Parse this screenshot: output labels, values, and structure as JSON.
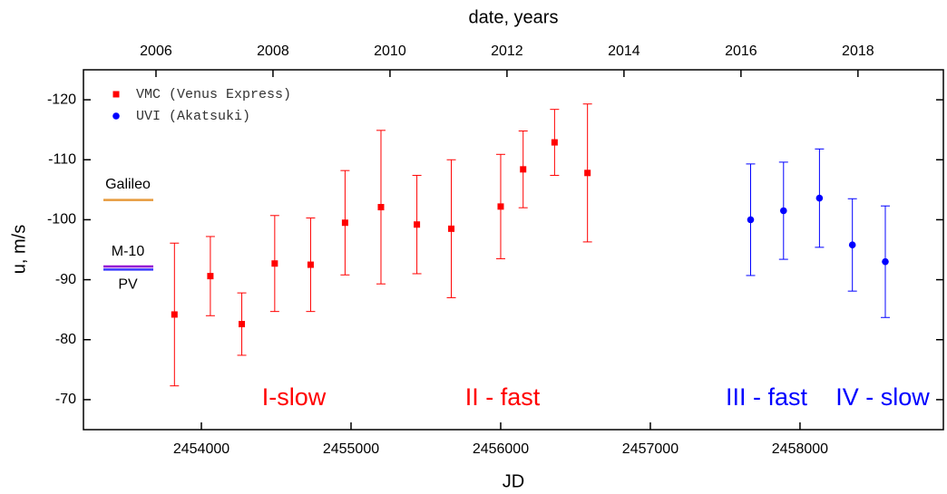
{
  "chart_data": {
    "type": "scatter",
    "xlabel": "JD",
    "ylabel": "u, m/s",
    "x2label": "date, years",
    "xlim": [
      2453212,
      2458958
    ],
    "xticks": [
      2454000,
      2455000,
      2456000,
      2457000,
      2458000
    ],
    "x2lim": [
      2004.76,
      2019.46
    ],
    "x2ticks": [
      2006,
      2008,
      2010,
      2012,
      2014,
      2016,
      2018
    ],
    "ylim": [
      -125,
      -65
    ],
    "yticks": [
      -120,
      -110,
      -100,
      -90,
      -80,
      -70
    ],
    "y_inverted": true,
    "legend": "upper left",
    "series": [
      {
        "name": "VMC (Venus Express)",
        "color": "#ff0000",
        "marker": "square",
        "x": [
          2453820,
          2454060,
          2454270,
          2454490,
          2454730,
          2454960,
          2455200,
          2455440,
          2455670,
          2456000,
          2456150,
          2456360,
          2456580
        ],
        "values": [
          -84.2,
          -90.6,
          -82.6,
          -92.7,
          -92.5,
          -99.5,
          -102.1,
          -99.2,
          -98.5,
          -102.2,
          -108.4,
          -112.9,
          -107.8
        ],
        "errors": [
          11.9,
          6.6,
          5.2,
          8,
          7.8,
          8.7,
          12.8,
          8.2,
          11.5,
          8.7,
          6.4,
          5.5,
          11.5
        ]
      },
      {
        "name": "UVI (Akatsuki)",
        "color": "#0000ff",
        "marker": "circle",
        "x": [
          2457670,
          2457890,
          2458130,
          2458350,
          2458570
        ],
        "values": [
          -100,
          -101.5,
          -103.6,
          -95.8,
          -93
        ],
        "errors": [
          9.3,
          8.1,
          8.2,
          7.7,
          9.3
        ]
      }
    ],
    "reference_lines": [
      {
        "label": "Galileo",
        "value": -103.3,
        "color": "#e69a3c"
      },
      {
        "label": "M-10",
        "value": -92.2,
        "color": "#9400d3"
      },
      {
        "label": "PV",
        "value": -91.7,
        "color": "#3a3aff"
      }
    ],
    "annotations": [
      {
        "text": "I-slow",
        "color": "#ff0000"
      },
      {
        "text": "II - fast",
        "color": "#ff0000"
      },
      {
        "text": "III - fast",
        "color": "#0000ff"
      },
      {
        "text": "IV - slow",
        "color": "#0000ff"
      }
    ]
  }
}
